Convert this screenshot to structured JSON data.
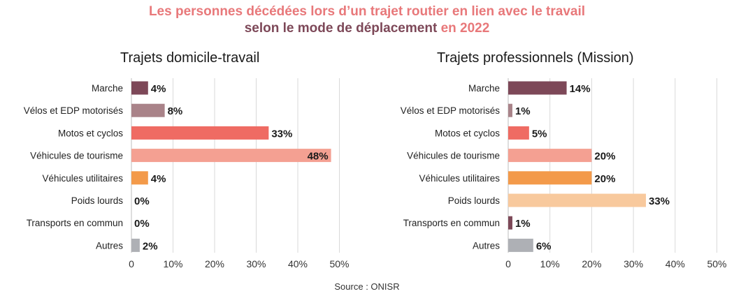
{
  "title": {
    "line1": "Les personnes décédées lors d’un trajet routier en lien avec le travail",
    "line2_part1": "selon le mode de déplacement",
    "line2_part2": "en 2022"
  },
  "source": "Source : ONISR",
  "colors": {
    "title_accent": "#e8787a",
    "title_dark": "#7d4858",
    "grid": "#d9d9d9"
  },
  "chart_data": [
    {
      "type": "bar",
      "orientation": "horizontal",
      "title": "Trajets domicile-travail",
      "categories": [
        "Marche",
        "Vélos et EDP motorisés",
        "Motos et cyclos",
        "Véhicules de tourisme",
        "Véhicules utilitaires",
        "Poids lourds",
        "Transports en commun",
        "Autres"
      ],
      "values": [
        4,
        8,
        33,
        48,
        4,
        0,
        0,
        2
      ],
      "value_labels": [
        "4%",
        "8%",
        "33%",
        "48%",
        "4%",
        "0%",
        "0%",
        "2%"
      ],
      "colors": [
        "#7d4858",
        "#a98389",
        "#ef6b63",
        "#f4a092",
        "#f39a4a",
        "#f8c99d",
        "#7d4858",
        "#aeb0b5"
      ],
      "xlim": [
        0,
        50
      ],
      "xticks": [
        "0",
        "10%",
        "20%",
        "30%",
        "40%",
        "50%"
      ],
      "grid": true
    },
    {
      "type": "bar",
      "orientation": "horizontal",
      "title": "Trajets professionnels (Mission)",
      "categories": [
        "Marche",
        "Vélos et EDP motorisés",
        "Motos et cyclos",
        "Véhicules de tourisme",
        "Véhicules utilitaires",
        "Poids lourds",
        "Transports en commun",
        "Autres"
      ],
      "values": [
        14,
        1,
        5,
        20,
        20,
        33,
        1,
        6
      ],
      "value_labels": [
        "14%",
        "1%",
        "5%",
        "20%",
        "20%",
        "33%",
        "1%",
        "6%"
      ],
      "colors": [
        "#7d4858",
        "#a98389",
        "#ef6b63",
        "#f4a092",
        "#f39a4a",
        "#f8c99d",
        "#7d4858",
        "#aeb0b5"
      ],
      "xlim": [
        0,
        50
      ],
      "xticks": [
        "0",
        "10%",
        "20%",
        "30%",
        "40%",
        "50%"
      ],
      "grid": true
    }
  ]
}
